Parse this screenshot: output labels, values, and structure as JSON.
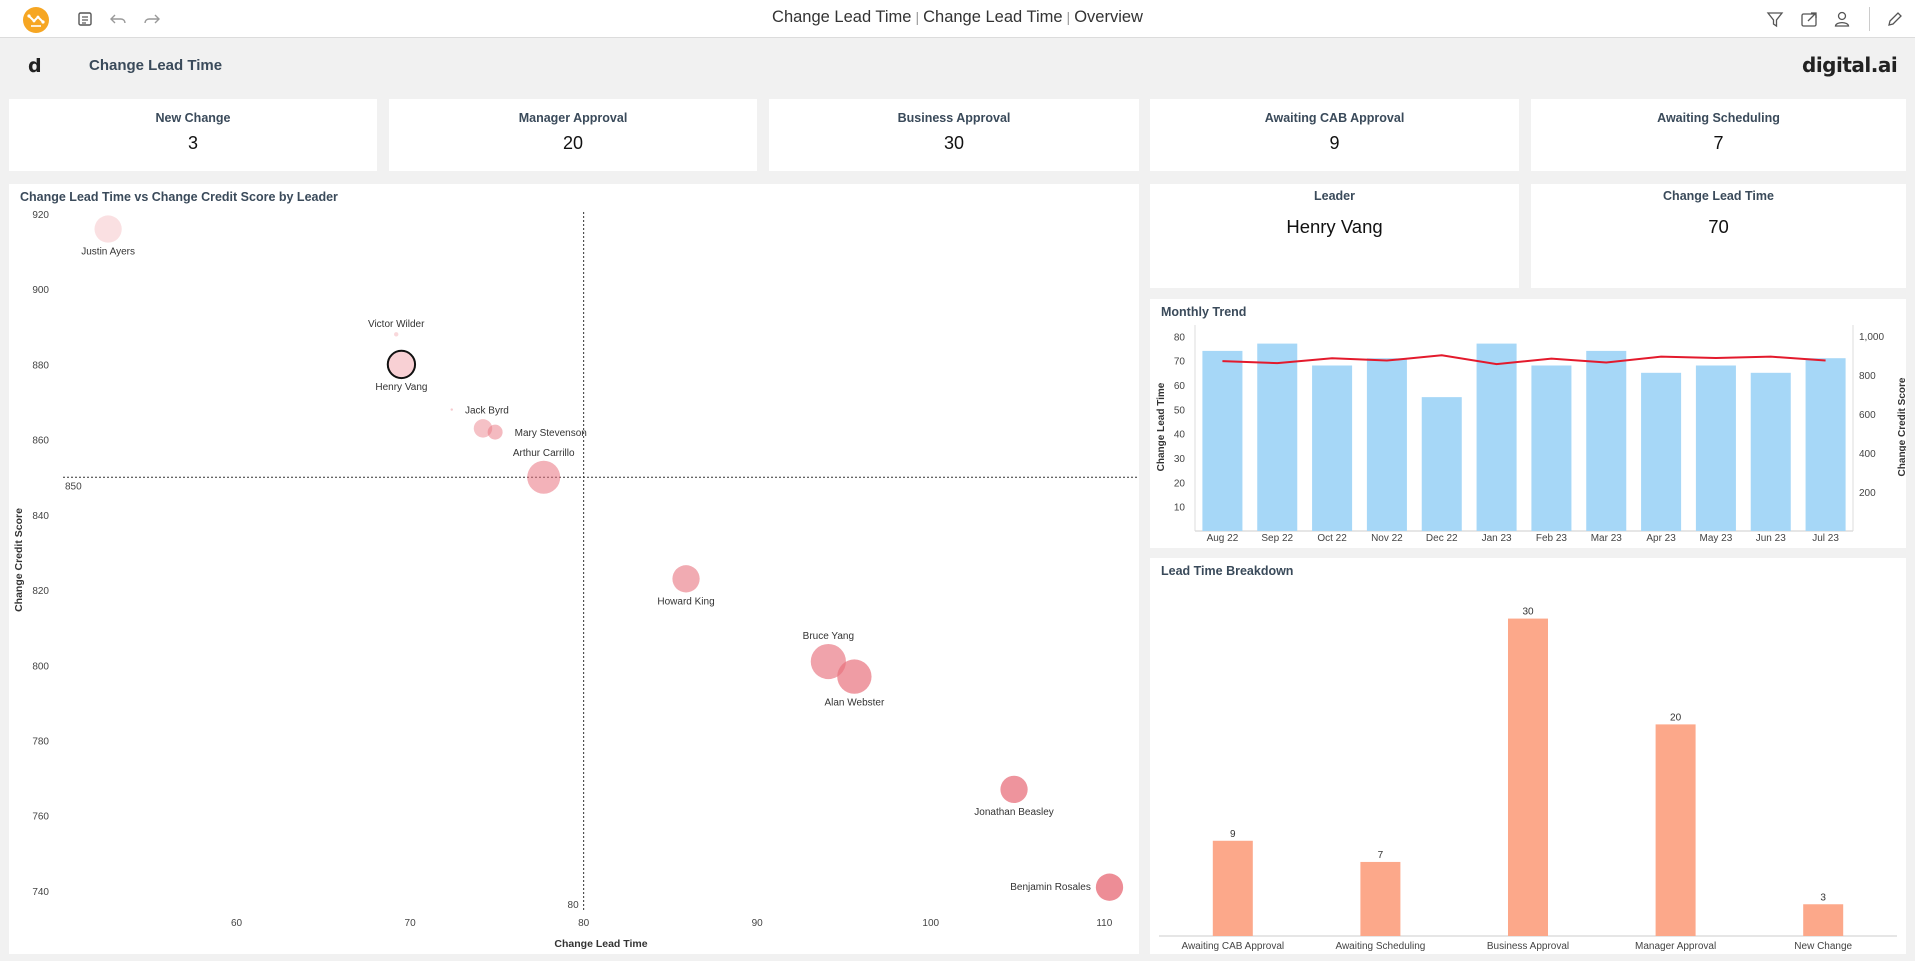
{
  "topbar": {
    "title_parts": [
      "Change Lead Time",
      "Change Lead Time",
      "Overview"
    ],
    "separator": "|",
    "icons": [
      "app-logo",
      "list-icon",
      "undo-icon",
      "redo-icon",
      "filter-icon",
      "share-icon",
      "user-icon",
      "edit-icon"
    ]
  },
  "header": {
    "logo_letter": "d",
    "title": "Change Lead Time",
    "brand": "digital.ai"
  },
  "kpis": [
    {
      "label": "New Change",
      "value": "3"
    },
    {
      "label": "Manager Approval",
      "value": "20"
    },
    {
      "label": "Business Approval",
      "value": "30"
    },
    {
      "label": "Awaiting CAB Approval",
      "value": "9"
    },
    {
      "label": "Awaiting Scheduling",
      "value": "7"
    }
  ],
  "selection": {
    "leader_label": "Leader",
    "leader_value": "Henry Vang",
    "lead_time_label": "Change Lead Time",
    "lead_time_value": "70"
  },
  "panels": {
    "scatter_title": "Change Lead Time vs Change Credit Score by Leader",
    "trend_title": "Monthly Trend",
    "breakdown_title": "Lead Time Breakdown"
  },
  "colors": {
    "bubble_fill": "#e8707c",
    "trend_bar": "#a6d7f7",
    "trend_line": "#e31a2c",
    "breakdown_bar": "#fca88a"
  },
  "chart_data": [
    {
      "type": "scatter",
      "title": "Change Lead Time vs Change Credit Score by Leader",
      "xlabel": "Change Lead Time",
      "ylabel": "Change Credit Score",
      "xlim": [
        50,
        112
      ],
      "ylim": [
        736,
        920
      ],
      "xticks": [
        60,
        70,
        80,
        90,
        100,
        110
      ],
      "yticks": [
        740,
        760,
        780,
        800,
        820,
        840,
        860,
        880,
        900,
        920
      ],
      "reference_lines": {
        "x": 80,
        "y": 850,
        "x_label": "80",
        "y_label": "850"
      },
      "points": [
        {
          "name": "Justin Ayers",
          "x": 52.6,
          "y": 916,
          "size": 0.62,
          "label_pos": "below",
          "selected": false
        },
        {
          "name": "Victor Wilder",
          "x": 69.2,
          "y": 888,
          "size": 0.1,
          "label_pos": "above",
          "selected": false
        },
        {
          "name": "Henry Vang",
          "x": 69.5,
          "y": 880,
          "size": 0.62,
          "label_pos": "below",
          "selected": true
        },
        {
          "name": "Jack Byrd",
          "x": 72.4,
          "y": 868,
          "size": 0.04,
          "label_pos": "right",
          "selected": false
        },
        {
          "name": "",
          "x": 74.2,
          "y": 863,
          "size": 0.42,
          "label_pos": "none",
          "selected": false
        },
        {
          "name": "Mary Stevenson",
          "x": 74.9,
          "y": 862,
          "size": 0.34,
          "label_pos": "right",
          "selected": false
        },
        {
          "name": "Arthur Carrillo",
          "x": 77.7,
          "y": 850,
          "size": 0.75,
          "label_pos": "above",
          "selected": false
        },
        {
          "name": "Howard King",
          "x": 85.9,
          "y": 823,
          "size": 0.62,
          "label_pos": "below",
          "selected": false
        },
        {
          "name": "Bruce Yang",
          "x": 94.1,
          "y": 801,
          "size": 0.8,
          "label_pos": "above",
          "selected": false
        },
        {
          "name": "Alan Webster",
          "x": 95.6,
          "y": 797,
          "size": 0.78,
          "label_pos": "below",
          "selected": false
        },
        {
          "name": "Jonathan Beasley",
          "x": 104.8,
          "y": 767,
          "size": 0.62,
          "label_pos": "below",
          "selected": false
        },
        {
          "name": "Benjamin Rosales",
          "x": 110.3,
          "y": 741,
          "size": 0.62,
          "label_pos": "left",
          "selected": false
        }
      ]
    },
    {
      "type": "bar",
      "title": "Monthly Trend",
      "categories": [
        "Aug 22",
        "Sep 22",
        "Oct 22",
        "Nov 22",
        "Dec 22",
        "Jan 23",
        "Feb 23",
        "Mar 23",
        "Apr 23",
        "May 23",
        "Jun 23",
        "Jul 23"
      ],
      "ylabel": "Change Lead Time",
      "y2label": "Change Credit Score",
      "ylim": [
        0,
        83
      ],
      "yticks": [
        10,
        20,
        30,
        40,
        50,
        60,
        70,
        80
      ],
      "y2lim": [
        0,
        1037
      ],
      "y2ticks": [
        200,
        400,
        600,
        800,
        1000
      ],
      "y2ticklabels": [
        "200",
        "400",
        "600",
        "800",
        "1,000"
      ],
      "series": [
        {
          "type": "bar",
          "axis": "left",
          "values": [
            74,
            77,
            68,
            71,
            55,
            77,
            68,
            74,
            65,
            68,
            65,
            71
          ]
        },
        {
          "type": "line",
          "axis": "right",
          "values": [
            872,
            862,
            887,
            875,
            902,
            857,
            885,
            865,
            895,
            888,
            895,
            875
          ]
        }
      ]
    },
    {
      "type": "bar",
      "title": "Lead Time Breakdown",
      "categories": [
        "Awaiting CAB Approval",
        "Awaiting Scheduling",
        "Business Approval",
        "Manager Approval",
        "New Change"
      ],
      "values": [
        9,
        7,
        30,
        20,
        3
      ],
      "ylim": [
        0,
        31
      ]
    }
  ]
}
